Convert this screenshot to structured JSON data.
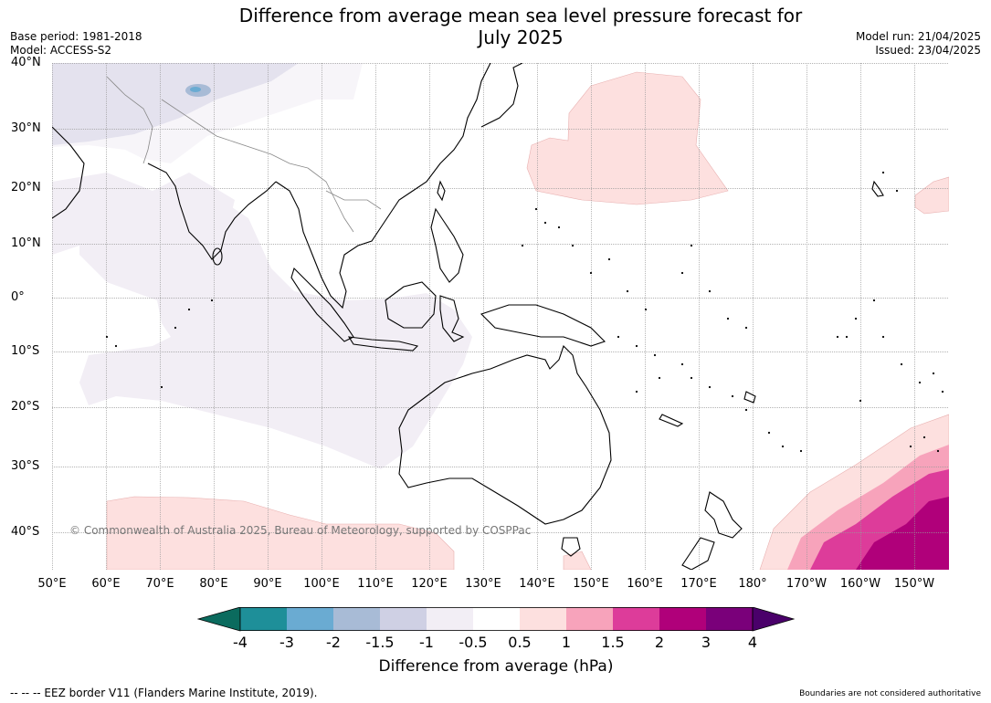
{
  "title_line1": "Difference from average mean sea level pressure forecast for",
  "title_line2": "July 2025",
  "base_period": "Base period: 1981-2018",
  "model": "Model: ACCESS-S2",
  "model_run": "Model run: 21/04/2025",
  "issued": "Issued: 23/04/2025",
  "copyright": "© Commonwealth of Australia 2025, Bureau of Meteorology, supported by COSPPac",
  "footer_left": "--  --  -- EEZ border V11 (Flanders Marine Institute, 2019).",
  "footer_right": "Boundaries are not considered authoritative",
  "lat_labels": [
    "40°N",
    "30°N",
    "20°N",
    "10°N",
    "0°",
    "10°S",
    "20°S",
    "30°S",
    "40°S"
  ],
  "lon_labels": [
    "50°E",
    "60°E",
    "70°E",
    "80°E",
    "90°E",
    "100°E",
    "110°E",
    "120°E",
    "130°E",
    "140°E",
    "150°E",
    "160°E",
    "170°E",
    "180°",
    "170°W",
    "160°W",
    "150°W"
  ],
  "colorbar": {
    "title": "Difference from average (hPa)",
    "ticks": [
      "-4",
      "-3",
      "-2",
      "-1.5",
      "-1",
      "-0.5",
      "0.5",
      "1",
      "1.5",
      "2",
      "3",
      "4"
    ],
    "colors": [
      "#0b6b5e",
      "#1e8f99",
      "#6aabd2",
      "#a8bbd6",
      "#cfd0e4",
      "#f2eef5",
      "#ffffff",
      "#fde0df",
      "#f7a3bb",
      "#dd3c9a",
      "#b0007a",
      "#7a007a",
      "#4a006a"
    ]
  },
  "map": {
    "ocean_color": "#ffffff",
    "land_outline": "#000000",
    "border_color": "#888888",
    "grid_color": "#999999"
  }
}
